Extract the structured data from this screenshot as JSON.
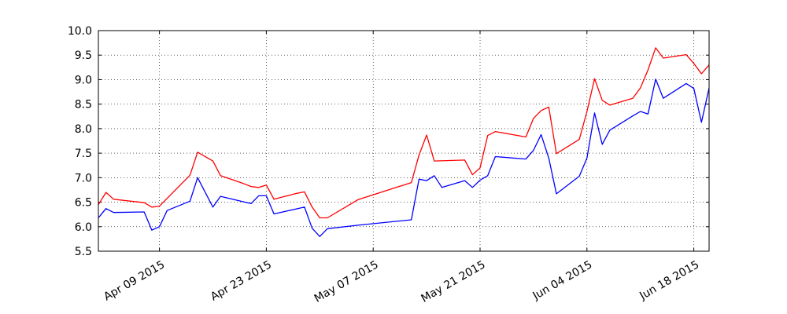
{
  "chart_data": {
    "type": "line",
    "title": "",
    "xlabel": "",
    "ylabel": "",
    "grid": true,
    "xlim": [
      "2015-04-01",
      "2015-06-18"
    ],
    "ylim": [
      5.5,
      10.0
    ],
    "yticks": [
      5.5,
      6.0,
      6.5,
      7.0,
      7.5,
      8.0,
      8.5,
      9.0,
      9.5,
      10.0
    ],
    "ytick_labels": [
      "5.5",
      "6.0",
      "6.5",
      "7.0",
      "7.5",
      "8.0",
      "8.5",
      "9.0",
      "9.5",
      "10.0"
    ],
    "xticks": [
      "2015-04-09",
      "2015-04-23",
      "2015-05-07",
      "2015-05-21",
      "2015-06-04",
      "2015-06-18"
    ],
    "xtick_labels": [
      "Apr 09 2015",
      "Apr 23 2015",
      "May 07 2015",
      "May 21 2015",
      "Jun 04 2015",
      "Jun 18 2015"
    ],
    "series": [
      {
        "color": "#ff0000",
        "points": [
          [
            "2015-04-01",
            6.45
          ],
          [
            "2015-04-02",
            6.7
          ],
          [
            "2015-04-03",
            6.56
          ],
          [
            "2015-04-07",
            6.49
          ],
          [
            "2015-04-08",
            6.4
          ],
          [
            "2015-04-09",
            6.42
          ],
          [
            "2015-04-13",
            7.05
          ],
          [
            "2015-04-14",
            7.52
          ],
          [
            "2015-04-16",
            7.34
          ],
          [
            "2015-04-17",
            7.04
          ],
          [
            "2015-04-20",
            6.88
          ],
          [
            "2015-04-21",
            6.82
          ],
          [
            "2015-04-22",
            6.8
          ],
          [
            "2015-04-23",
            6.85
          ],
          [
            "2015-04-24",
            6.56
          ],
          [
            "2015-04-27",
            6.68
          ],
          [
            "2015-04-28",
            6.71
          ],
          [
            "2015-04-29",
            6.4
          ],
          [
            "2015-04-30",
            6.18
          ],
          [
            "2015-05-01",
            6.18
          ],
          [
            "2015-05-05",
            6.55
          ],
          [
            "2015-05-11",
            6.85
          ],
          [
            "2015-05-12",
            6.9
          ],
          [
            "2015-05-13",
            7.46
          ],
          [
            "2015-05-14",
            7.87
          ],
          [
            "2015-05-15",
            7.34
          ],
          [
            "2015-05-19",
            7.36
          ],
          [
            "2015-05-20",
            7.06
          ],
          [
            "2015-05-21",
            7.2
          ],
          [
            "2015-05-22",
            7.86
          ],
          [
            "2015-05-23",
            7.94
          ],
          [
            "2015-05-27",
            7.83
          ],
          [
            "2015-05-28",
            8.21
          ],
          [
            "2015-05-29",
            8.37
          ],
          [
            "2015-05-30",
            8.44
          ],
          [
            "2015-05-31",
            7.49
          ],
          [
            "2015-06-03",
            7.78
          ],
          [
            "2015-06-04",
            8.35
          ],
          [
            "2015-06-05",
            9.02
          ],
          [
            "2015-06-06",
            8.58
          ],
          [
            "2015-06-07",
            8.48
          ],
          [
            "2015-06-10",
            8.62
          ],
          [
            "2015-06-11",
            8.83
          ],
          [
            "2015-06-12",
            9.2
          ],
          [
            "2015-06-13",
            9.65
          ],
          [
            "2015-06-14",
            9.44
          ],
          [
            "2015-06-17",
            9.51
          ],
          [
            "2015-06-18",
            9.33
          ],
          [
            "2015-06-19",
            9.12
          ],
          [
            "2015-06-20",
            9.3
          ]
        ]
      },
      {
        "color": "#0000ff",
        "points": [
          [
            "2015-04-01",
            6.18
          ],
          [
            "2015-04-02",
            6.37
          ],
          [
            "2015-04-03",
            6.29
          ],
          [
            "2015-04-07",
            6.3
          ],
          [
            "2015-04-08",
            5.93
          ],
          [
            "2015-04-09",
            6.0
          ],
          [
            "2015-04-10",
            6.33
          ],
          [
            "2015-04-13",
            6.52
          ],
          [
            "2015-04-14",
            7.0
          ],
          [
            "2015-04-16",
            6.4
          ],
          [
            "2015-04-17",
            6.62
          ],
          [
            "2015-04-21",
            6.47
          ],
          [
            "2015-04-22",
            6.63
          ],
          [
            "2015-04-23",
            6.63
          ],
          [
            "2015-04-24",
            6.26
          ],
          [
            "2015-04-28",
            6.4
          ],
          [
            "2015-04-29",
            5.97
          ],
          [
            "2015-04-30",
            5.8
          ],
          [
            "2015-05-01",
            5.96
          ],
          [
            "2015-05-05",
            6.03
          ],
          [
            "2015-05-12",
            6.14
          ],
          [
            "2015-05-13",
            6.97
          ],
          [
            "2015-05-14",
            6.94
          ],
          [
            "2015-05-15",
            7.04
          ],
          [
            "2015-05-16",
            6.8
          ],
          [
            "2015-05-19",
            6.94
          ],
          [
            "2015-05-20",
            6.8
          ],
          [
            "2015-05-21",
            6.95
          ],
          [
            "2015-05-22",
            7.04
          ],
          [
            "2015-05-23",
            7.43
          ],
          [
            "2015-05-27",
            7.38
          ],
          [
            "2015-05-28",
            7.56
          ],
          [
            "2015-05-29",
            7.88
          ],
          [
            "2015-05-30",
            7.4
          ],
          [
            "2015-05-31",
            6.67
          ],
          [
            "2015-06-03",
            7.03
          ],
          [
            "2015-06-04",
            7.4
          ],
          [
            "2015-06-05",
            8.32
          ],
          [
            "2015-06-06",
            7.68
          ],
          [
            "2015-06-07",
            7.97
          ],
          [
            "2015-06-10",
            8.26
          ],
          [
            "2015-06-11",
            8.35
          ],
          [
            "2015-06-12",
            8.3
          ],
          [
            "2015-06-13",
            9.01
          ],
          [
            "2015-06-14",
            8.62
          ],
          [
            "2015-06-17",
            8.92
          ],
          [
            "2015-06-18",
            8.82
          ],
          [
            "2015-06-19",
            8.13
          ],
          [
            "2015-06-20",
            8.83
          ]
        ]
      }
    ]
  }
}
